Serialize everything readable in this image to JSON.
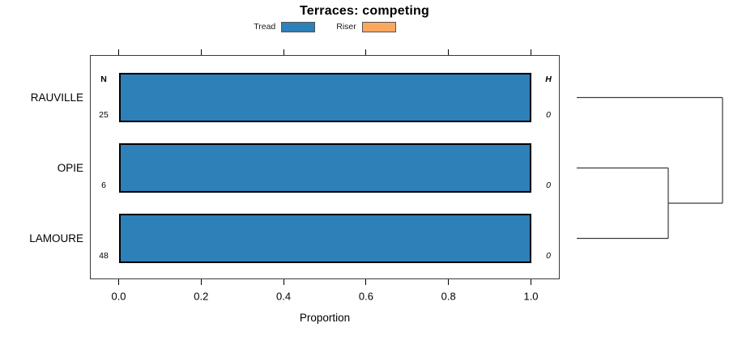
{
  "title": "Terraces: competing",
  "legend": {
    "items": [
      {
        "label": "Tread",
        "color": "#2E80B9"
      },
      {
        "label": "Riser",
        "color": "#FBA85F"
      }
    ]
  },
  "chart_data": {
    "type": "bar",
    "orientation": "horizontal",
    "title": "Terraces: competing",
    "xlabel": "Proportion",
    "xlim": [
      -0.07,
      1.07
    ],
    "xticks": [
      0,
      0.2,
      0.4,
      0.6,
      0.8,
      1.0
    ],
    "xtick_labels": [
      "0.0",
      "0.2",
      "0.4",
      "0.6",
      "0.8",
      "1.0"
    ],
    "categories": [
      "RAUVILLE",
      "OPIE",
      "LAMOURE"
    ],
    "series": [
      {
        "name": "Tread",
        "color": "#2E80B9",
        "values": [
          1.0,
          1.0,
          1.0
        ]
      },
      {
        "name": "Riser",
        "color": "#FBA85F",
        "values": [
          0.0,
          0.0,
          0.0
        ]
      }
    ],
    "annotations": {
      "n_header": "N",
      "n_values": [
        "25",
        "6",
        "48"
      ],
      "h_header": "H",
      "h_values": [
        "0",
        "0",
        "0"
      ]
    },
    "dendrogram": {
      "present": true,
      "leaf_order": [
        "RAUVILLE",
        "OPIE",
        "LAMOURE"
      ],
      "merges": [
        [
          "OPIE",
          "LAMOURE"
        ],
        [
          "RAUVILLE",
          "OPIE+LAMOURE"
        ]
      ]
    },
    "legend_position": "top",
    "grid": false
  },
  "colors": {
    "tread_fill": "#2E80B9",
    "riser_fill": "#FBA85F",
    "bar_border": "#000000",
    "box_border": "#3a3a3a",
    "dendrogram_line": "#3a3a3a",
    "text": "#000000"
  }
}
